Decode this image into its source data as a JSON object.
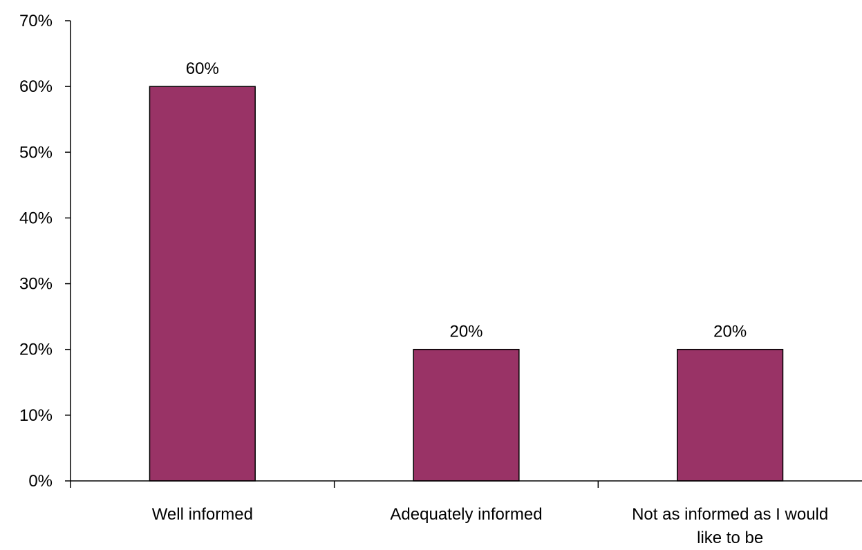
{
  "chart_data": {
    "type": "bar",
    "categories": [
      "Well informed",
      "Adequately informed",
      "Not as informed as I would like to be"
    ],
    "category_lines": [
      [
        "Well informed"
      ],
      [
        "Adequately informed"
      ],
      [
        "Not as informed as I would",
        "like to be"
      ]
    ],
    "values": [
      60,
      20,
      20
    ],
    "data_labels": [
      "60%",
      "20%",
      "20%"
    ],
    "ylim": [
      0,
      70
    ],
    "yticks": [
      0,
      10,
      20,
      30,
      40,
      50,
      60,
      70
    ],
    "ytick_labels": [
      "0%",
      "10%",
      "20%",
      "30%",
      "40%",
      "50%",
      "60%",
      "70%"
    ],
    "grid": false,
    "bar_color": "#993366",
    "title": "",
    "xlabel": "",
    "ylabel": ""
  }
}
